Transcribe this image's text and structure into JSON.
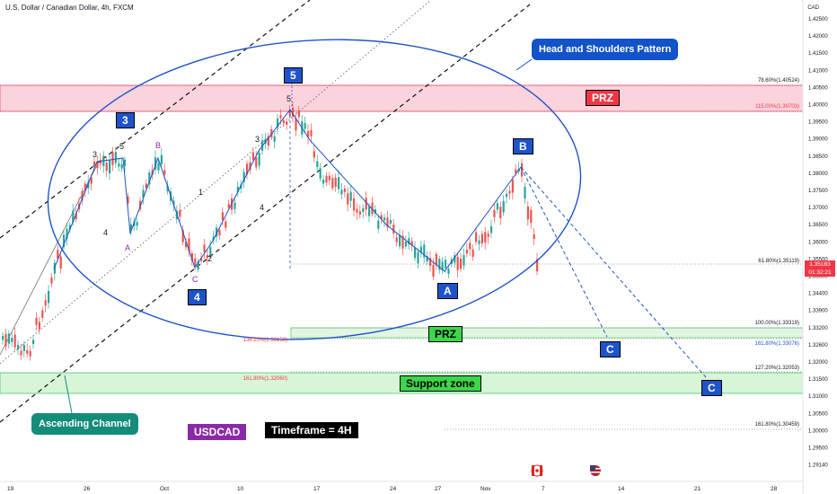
{
  "header": {
    "title": "U.S. Dollar / Canadian Dollar, 4h, FXCM",
    "currency": "CAD"
  },
  "price_axis": {
    "ticks": [
      "1.42500",
      "1.42000",
      "1.41500",
      "1.41000",
      "1.40500",
      "1.40000",
      "1.39500",
      "1.39000",
      "1.38500",
      "1.38000",
      "1.37500",
      "1.37000",
      "1.36500",
      "1.36000",
      "1.35500",
      "1.35000",
      "1.34400",
      "1.33900",
      "1.33200",
      "1.32600",
      "1.32000",
      "1.31500",
      "1.31000",
      "1.30500",
      "1.30000",
      "1.29500",
      "1.29140"
    ],
    "last_price": "1.35183",
    "countdown": "01:32:21"
  },
  "time_axis": {
    "ticks": [
      "19",
      "26",
      "Oct",
      "10",
      "17",
      "24",
      "27",
      "Nov",
      "7",
      "14",
      "21",
      "28"
    ]
  },
  "fib_labels": {
    "f786": "78.60%(1.40524)",
    "f115": "115.00%(1.39703)",
    "f618": "61.80%(1.35119)",
    "f100": "100.00%(1.33319)",
    "f138": "138.20%(1.33158)",
    "f1618a": "161.80%(1.33076)",
    "f1272": "127.20%(1.32053)",
    "f1618b": "161.80%(1.32060)",
    "f1618c": "161.80%(1.30459)"
  },
  "wave_labels": {
    "w3_box": "3",
    "w4_box": "4",
    "w5_box": "5",
    "A_box": "A",
    "B_box": "B",
    "C1_box": "C",
    "C2_box": "C",
    "s3a": "3",
    "s5": "5",
    "s4a": "4",
    "sA": "A",
    "sB": "B",
    "sC": "C",
    "s1": "1",
    "s2": "2",
    "s3b": "3",
    "s4b": "4",
    "s5top": "5"
  },
  "annotations": {
    "hs_pattern": "Head and Shoulders Pattern",
    "prz_top": "PRZ",
    "prz_bottom": "PRZ",
    "support_zone": "Support zone",
    "ascending_channel": "Ascending Channel",
    "symbol": "USDCAD",
    "timeframe": "Timeframe = 4H"
  },
  "colors": {
    "up": "#26a69a",
    "down": "#ef5350",
    "wave": "#1e53c9",
    "prz_top_fill": "#fbd3dc",
    "prz_top_border": "#f2365a",
    "support_fill": "#d8f5d8",
    "support_border": "#2ec05c",
    "callout_blue": "#1253c9",
    "callout_teal": "#148c7a",
    "symbol_purple": "#8a2aa8"
  },
  "icons": [
    "canada-flag-icon",
    "us-flag-icon"
  ]
}
